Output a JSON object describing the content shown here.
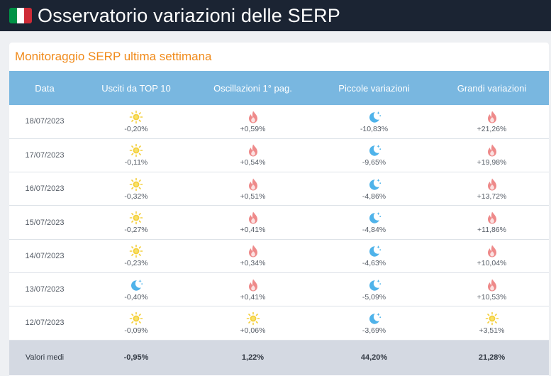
{
  "header": {
    "title": "Osservatorio variazioni delle SERP",
    "flag_icon": "italy-flag-icon",
    "colors": {
      "background": "#1b2433",
      "flag": [
        "#009246",
        "#ffffff",
        "#ce2b37"
      ]
    }
  },
  "card": {
    "title": "Monitoraggio SERP ultima settimana",
    "title_color": "#f08a1a"
  },
  "table": {
    "header_color": "#79b7e0",
    "columns": [
      "Data",
      "Usciti da TOP 10",
      "Oscillazioni 1° pag.",
      "Piccole variazioni",
      "Grandi variazioni"
    ],
    "rows": [
      {
        "date": "18/07/2023",
        "cells": [
          {
            "icon": "sun-icon",
            "value": "-0,20%"
          },
          {
            "icon": "fire-icon",
            "value": "+0,59%"
          },
          {
            "icon": "moon-icon",
            "value": "-10,83%"
          },
          {
            "icon": "fire-icon",
            "value": "+21,26%"
          }
        ]
      },
      {
        "date": "17/07/2023",
        "cells": [
          {
            "icon": "sun-icon",
            "value": "-0,11%"
          },
          {
            "icon": "fire-icon",
            "value": "+0,54%"
          },
          {
            "icon": "moon-icon",
            "value": "-9,65%"
          },
          {
            "icon": "fire-icon",
            "value": "+19,98%"
          }
        ]
      },
      {
        "date": "16/07/2023",
        "cells": [
          {
            "icon": "sun-icon",
            "value": "-0,32%"
          },
          {
            "icon": "fire-icon",
            "value": "+0,51%"
          },
          {
            "icon": "moon-icon",
            "value": "-4,86%"
          },
          {
            "icon": "fire-icon",
            "value": "+13,72%"
          }
        ]
      },
      {
        "date": "15/07/2023",
        "cells": [
          {
            "icon": "sun-icon",
            "value": "-0,27%"
          },
          {
            "icon": "fire-icon",
            "value": "+0,41%"
          },
          {
            "icon": "moon-icon",
            "value": "-4,84%"
          },
          {
            "icon": "fire-icon",
            "value": "+11,86%"
          }
        ]
      },
      {
        "date": "14/07/2023",
        "cells": [
          {
            "icon": "sun-icon",
            "value": "-0,23%"
          },
          {
            "icon": "fire-icon",
            "value": "+0,34%"
          },
          {
            "icon": "moon-icon",
            "value": "-4,63%"
          },
          {
            "icon": "fire-icon",
            "value": "+10,04%"
          }
        ]
      },
      {
        "date": "13/07/2023",
        "cells": [
          {
            "icon": "moon-icon",
            "value": "-0,40%"
          },
          {
            "icon": "fire-icon",
            "value": "+0,41%"
          },
          {
            "icon": "moon-icon",
            "value": "-5,09%"
          },
          {
            "icon": "fire-icon",
            "value": "+10,53%"
          }
        ]
      },
      {
        "date": "12/07/2023",
        "cells": [
          {
            "icon": "sun-icon",
            "value": "-0,09%"
          },
          {
            "icon": "sun-icon",
            "value": "+0,06%"
          },
          {
            "icon": "moon-icon",
            "value": "-3,69%"
          },
          {
            "icon": "sun-icon",
            "value": "+3,51%"
          }
        ]
      }
    ],
    "averages": {
      "label": "Valori medi",
      "values": [
        "-0,95%",
        "1,22%",
        "44,20%",
        "21,28%"
      ]
    }
  }
}
